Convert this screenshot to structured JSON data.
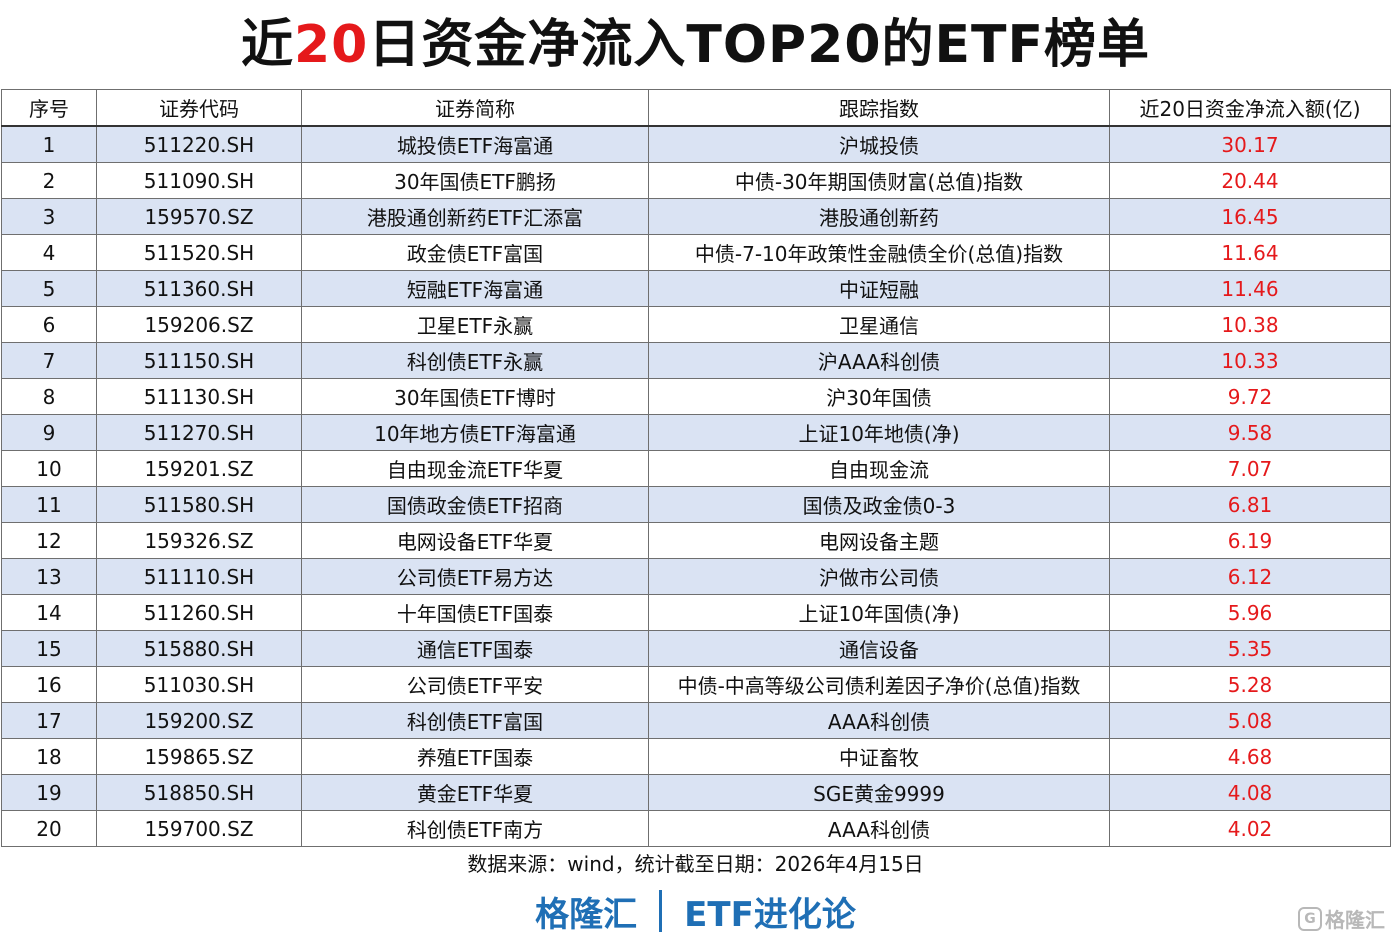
{
  "title": {
    "prefix": "近",
    "highlight": "20",
    "suffix": "日资金净流入TOP20的ETF榜单"
  },
  "table": {
    "headers": [
      "序号",
      "证券代码",
      "证券简称",
      "跟踪指数",
      "近20日资金净流入额(亿)"
    ],
    "rows": [
      [
        "1",
        "511220.SH",
        "城投债ETF海富通",
        "沪城投债",
        "30.17"
      ],
      [
        "2",
        "511090.SH",
        "30年国债ETF鹏扬",
        "中债-30年期国债财富(总值)指数",
        "20.44"
      ],
      [
        "3",
        "159570.SZ",
        "港股通创新药ETF汇添富",
        "港股通创新药",
        "16.45"
      ],
      [
        "4",
        "511520.SH",
        "政金债ETF富国",
        "中债-7-10年政策性金融债全价(总值)指数",
        "11.64"
      ],
      [
        "5",
        "511360.SH",
        "短融ETF海富通",
        "中证短融",
        "11.46"
      ],
      [
        "6",
        "159206.SZ",
        "卫星ETF永赢",
        "卫星通信",
        "10.38"
      ],
      [
        "7",
        "511150.SH",
        "科创债ETF永赢",
        "沪AAA科创债",
        "10.33"
      ],
      [
        "8",
        "511130.SH",
        "30年国债ETF博时",
        "沪30年国债",
        "9.72"
      ],
      [
        "9",
        "511270.SH",
        "10年地方债ETF海富通",
        "上证10年地债(净)",
        "9.58"
      ],
      [
        "10",
        "159201.SZ",
        "自由现金流ETF华夏",
        "自由现金流",
        "7.07"
      ],
      [
        "11",
        "511580.SH",
        "国债政金债ETF招商",
        "国债及政金债0-3",
        "6.81"
      ],
      [
        "12",
        "159326.SZ",
        "电网设备ETF华夏",
        "电网设备主题",
        "6.19"
      ],
      [
        "13",
        "511110.SH",
        "公司债ETF易方达",
        "沪做市公司债",
        "6.12"
      ],
      [
        "14",
        "511260.SH",
        "十年国债ETF国泰",
        "上证10年国债(净)",
        "5.96"
      ],
      [
        "15",
        "515880.SH",
        "通信ETF国泰",
        "通信设备",
        "5.35"
      ],
      [
        "16",
        "511030.SH",
        "公司债ETF平安",
        "中债-中高等级公司债利差因子净价(总值)指数",
        "5.28"
      ],
      [
        "17",
        "159200.SZ",
        "科创债ETF富国",
        "AAA科创债",
        "5.08"
      ],
      [
        "18",
        "159865.SZ",
        "养殖ETF国泰",
        "中证畜牧",
        "4.68"
      ],
      [
        "19",
        "518850.SH",
        "黄金ETF华夏",
        "SGE黄金9999",
        "4.08"
      ],
      [
        "20",
        "159700.SZ",
        "科创债ETF南方",
        "AAA科创债",
        "4.02"
      ]
    ]
  },
  "source_note": "数据来源：wind，统计截至日期：2026年4月15日",
  "footer": {
    "brand": "格隆汇",
    "column": "ETF进化论"
  },
  "watermark": {
    "logo": "G",
    "text": "格隆汇"
  },
  "colors": {
    "accent_red": "#e5191b",
    "row_stripe": "#dae3f3",
    "footer_blue": "#1f6fb5"
  }
}
